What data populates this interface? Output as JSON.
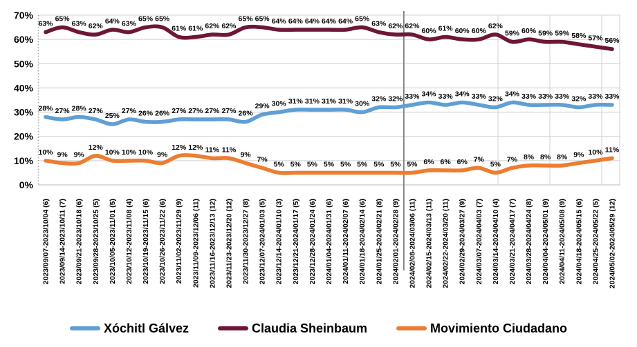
{
  "chart_data": {
    "type": "line",
    "title": "",
    "xlabel": "",
    "ylabel": "",
    "ylim": [
      0,
      70
    ],
    "y_tick_step": 10,
    "y_tick_suffix": "%",
    "grid": "horizontal",
    "legend_position": "bottom",
    "separator_after_index": 21,
    "x_labels": [
      "2023/09/07-2023/10/04 (6)",
      "2023/09/14-2023/10/11 (7)",
      "2023/09/21-2023/10/18 (6)",
      "2023/09/28-2023/10/25 (5)",
      "2023/10/05-2023/11/01 (5)",
      "2023/10/12-2023/11/08 (4)",
      "2023/10/19-2023/11/15 (6)",
      "2023/10/26-2023/11/22 (6)",
      "2023/11/02-2023/11/29 (9)",
      "2023/11/09-2023/12/06 (11)",
      "2023/11/16-2023/12/13 (12)",
      "2023/11/23-2023/12/20 (12)",
      "2023/11/30-2023/12/27 (8)",
      "2023/12/07-2024/01/03 (5)",
      "2023/12/14-2024/01/10 (3)",
      "2023/12/21-2024/01/17 (5)",
      "2023/12/28-2024/01/24 (6)",
      "2024/01/04-2024/01/31 (6)",
      "2024/01/11-2024/02/07 (6)",
      "2024/01/18-2024/02/14 (6)",
      "2024/01/25-2024/02/21 (8)",
      "2024/02/01-2024/02/28 (9)",
      "2024/02/08-2024/03/06 (11)",
      "2024/02/15-2024/03/13 (11)",
      "2024/02/22-2024/03/20 (11)",
      "2024/02/29-2024/03/27 (9)",
      "2024/03/07-2024/04/03 (7)",
      "2024/03/14-2024/04/10 (4)",
      "2024/03/21-2024/04/17 (7)",
      "2024/03/28-2024/04/24 (8)",
      "2024/04/04-2024/05/01 (9)",
      "2024/04/11-2024/05/08 (9)",
      "2024/04/18-2024/05/15 (6)",
      "2024/04/25-2024/05/22 (5)",
      "2024/05/02-2024/05/29 (12)"
    ],
    "series": [
      {
        "name": "Claudia Sheinbaum",
        "color": "#6D1638",
        "values": [
          63,
          65,
          63,
          62,
          64,
          63,
          65,
          65,
          61,
          61,
          62,
          62,
          65,
          65,
          64,
          64,
          64,
          64,
          64,
          65,
          63,
          62,
          62,
          60,
          61,
          60,
          60,
          62,
          59,
          60,
          59,
          59,
          58,
          57,
          56
        ]
      },
      {
        "name": "Xóchitl Gálvez",
        "color": "#5E9FD6",
        "values": [
          28,
          27,
          28,
          27,
          25,
          27,
          26,
          26,
          27,
          27,
          27,
          27,
          26,
          29,
          30,
          31,
          31,
          31,
          31,
          30,
          32,
          32,
          33,
          34,
          33,
          34,
          33,
          32,
          34,
          33,
          33,
          33,
          32,
          33,
          33
        ]
      },
      {
        "name": "Movimiento Ciudadano",
        "color": "#ED7D31",
        "values": [
          10,
          9,
          9,
          12,
          10,
          10,
          10,
          9,
          12,
          12,
          11,
          11,
          9,
          7,
          5,
          5,
          5,
          5,
          5,
          5,
          5,
          5,
          5,
          6,
          6,
          6,
          7,
          5,
          7,
          8,
          8,
          8,
          9,
          10,
          11
        ]
      }
    ],
    "legend_order": [
      "Xóchitl Gálvez",
      "Claudia Sheinbaum",
      "Movimiento Ciudadano"
    ],
    "colors": {
      "gridline": "#D9D9D9",
      "axis_dotted": "#A6A6A6",
      "separator_line": "#808080",
      "label_text": "#000000"
    }
  }
}
